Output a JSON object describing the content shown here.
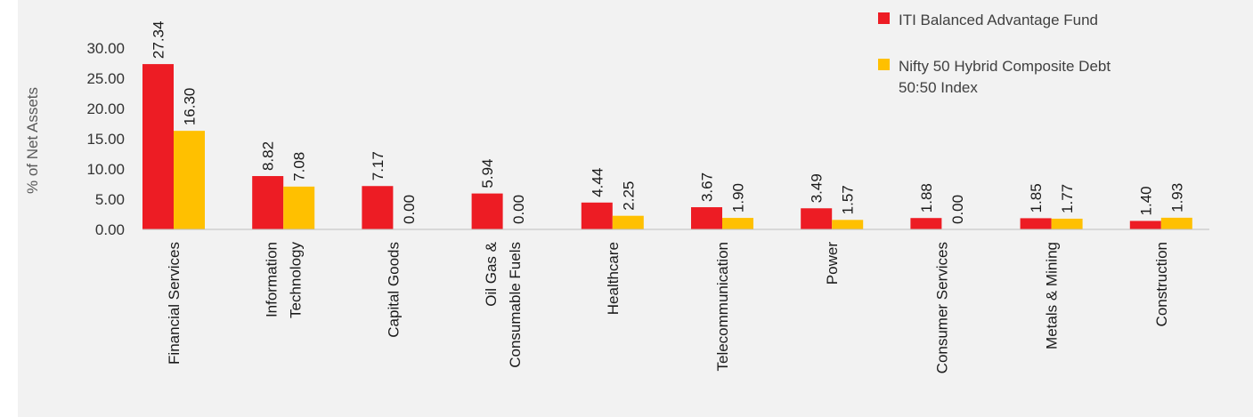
{
  "chart_data": {
    "type": "bar",
    "ylabel": "% of Net Assets",
    "ylim": [
      0,
      30
    ],
    "yticks": [
      "0.00",
      "5.00",
      "10.00",
      "15.00",
      "20.00",
      "25.00",
      "30.00"
    ],
    "grid": false,
    "legend_position": "top-right",
    "categories": [
      [
        "Financial Services"
      ],
      [
        "Information",
        "Technology"
      ],
      [
        "Capital Goods"
      ],
      [
        "Oil Gas &",
        "Consumable Fuels"
      ],
      [
        "Healthcare"
      ],
      [
        "Telecommunication"
      ],
      [
        "Power"
      ],
      [
        "Consumer Services"
      ],
      [
        "Metals & Mining"
      ],
      [
        "Construction"
      ]
    ],
    "series": [
      {
        "name": [
          "ITI Balanced Advantage Fund"
        ],
        "color": "#ed1c24",
        "values": [
          27.34,
          8.82,
          7.17,
          5.94,
          4.44,
          3.67,
          3.49,
          1.88,
          1.85,
          1.4
        ],
        "labels": [
          "27.34",
          "8.82",
          "7.17",
          "5.94",
          "4.44",
          "3.67",
          "3.49",
          "1.88",
          "1.85",
          "1.40"
        ]
      },
      {
        "name": [
          "Nifty 50 Hybrid Composite Debt",
          "50:50 Index"
        ],
        "color": "#ffc000",
        "values": [
          16.3,
          7.08,
          0.0,
          0.0,
          2.25,
          1.9,
          1.57,
          0.0,
          1.77,
          1.93
        ],
        "labels": [
          "16.30",
          "7.08",
          "0.00",
          "0.00",
          "2.25",
          "1.90",
          "1.57",
          "0.00",
          "1.77",
          "1.93"
        ]
      }
    ]
  }
}
